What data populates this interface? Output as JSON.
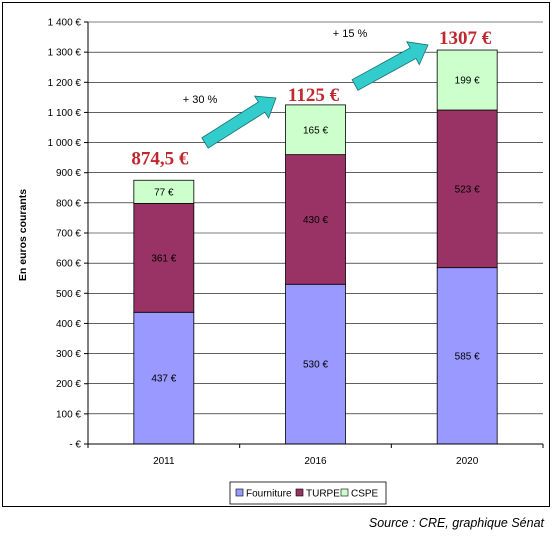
{
  "chart_data": {
    "type": "bar",
    "stacked": true,
    "categories": [
      "2011",
      "2016",
      "2020"
    ],
    "series": [
      {
        "name": "Fourniture",
        "values": [
          437,
          530,
          585
        ],
        "labels": [
          "437 €",
          "530 €",
          "585 €"
        ],
        "color": "#9999ff"
      },
      {
        "name": "TURPE",
        "values": [
          361,
          430,
          523
        ],
        "labels": [
          "361 €",
          "430 €",
          "523 €"
        ],
        "color": "#993366"
      },
      {
        "name": "CSPE",
        "values": [
          77,
          165,
          199
        ],
        "labels": [
          "77 €",
          "165 €",
          "199 €"
        ],
        "color": "#ccffcc"
      }
    ],
    "totals": [
      874.5,
      1125,
      1307
    ],
    "total_labels": [
      "874,5 €",
      "1125 €",
      "1307 €"
    ],
    "growth_labels": [
      "+ 30 %",
      "+ 15 %"
    ],
    "ylabel": "En euros courants",
    "ylim": [
      0,
      1400
    ],
    "yticks": [
      0,
      100,
      200,
      300,
      400,
      500,
      600,
      700,
      800,
      900,
      1000,
      1100,
      1200,
      1300,
      1400
    ],
    "ytick_labels": [
      "- €",
      "100 €",
      "200 €",
      "300 €",
      "400 €",
      "500 €",
      "600 €",
      "700 €",
      "800 €",
      "900 €",
      "1 000 €",
      "1 100 €",
      "1 200 €",
      "1 300 €",
      "1 400 €"
    ],
    "grid": true,
    "legend_position": "bottom",
    "arrow_color": "#33cccc"
  },
  "source": "Source : CRE, graphique Sénat"
}
